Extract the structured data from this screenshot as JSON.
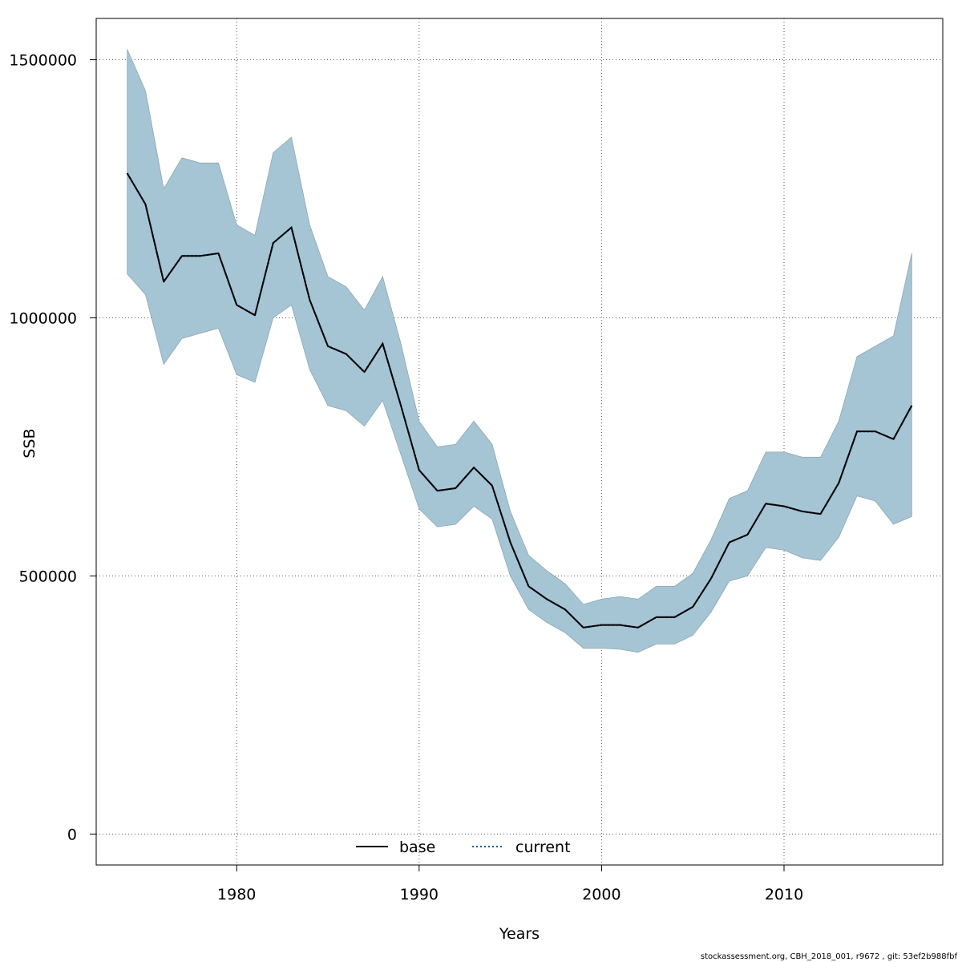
{
  "chart_data": {
    "type": "line",
    "xlabel": "Years",
    "ylabel": "SSB",
    "xlim": [
      1972.3,
      2018.7
    ],
    "ylim": [
      -60000,
      1580000
    ],
    "x_ticks": [
      1980,
      1990,
      2000,
      2010
    ],
    "y_ticks": [
      0,
      500000,
      1000000,
      1500000
    ],
    "y_tick_labels": [
      "0",
      "500000",
      "1000000",
      "1500000"
    ],
    "grid": true,
    "legend_position": "bottom-center",
    "legend": [
      {
        "name": "base",
        "color": "#000000",
        "style": "solid"
      },
      {
        "name": "current",
        "color": "#0b5e8e",
        "style": "dotted"
      }
    ],
    "band_color": "#a5c4d4",
    "x": [
      1974,
      1975,
      1976,
      1977,
      1978,
      1979,
      1980,
      1981,
      1982,
      1983,
      1984,
      1985,
      1986,
      1987,
      1988,
      1989,
      1990,
      1991,
      1992,
      1993,
      1994,
      1995,
      1996,
      1997,
      1998,
      1999,
      2000,
      2001,
      2002,
      2003,
      2004,
      2005,
      2006,
      2007,
      2008,
      2009,
      2010,
      2011,
      2012,
      2013,
      2014,
      2015,
      2016,
      2017
    ],
    "series": [
      {
        "name": "base",
        "values": [
          1280000,
          1220000,
          1070000,
          1120000,
          1120000,
          1125000,
          1025000,
          1005000,
          1145000,
          1175000,
          1035000,
          945000,
          930000,
          895000,
          950000,
          830000,
          705000,
          665000,
          670000,
          710000,
          675000,
          565000,
          480000,
          455000,
          435000,
          400000,
          405000,
          405000,
          400000,
          420000,
          420000,
          440000,
          495000,
          565000,
          580000,
          640000,
          635000,
          625000,
          620000,
          680000,
          780000,
          780000,
          765000,
          830000
        ]
      },
      {
        "name": "current",
        "values": [
          1280000,
          1220000,
          1070000,
          1120000,
          1120000,
          1125000,
          1025000,
          1005000,
          1145000,
          1175000,
          1035000,
          945000,
          930000,
          895000,
          950000,
          830000,
          705000,
          665000,
          670000,
          710000,
          675000,
          565000,
          480000,
          455000,
          435000,
          400000,
          405000,
          405000,
          400000,
          420000,
          420000,
          440000,
          495000,
          565000,
          580000,
          640000,
          635000,
          625000,
          620000,
          680000,
          780000,
          780000,
          765000,
          830000
        ]
      }
    ],
    "band_upper": [
      1520000,
      1440000,
      1250000,
      1310000,
      1300000,
      1300000,
      1180000,
      1160000,
      1320000,
      1350000,
      1180000,
      1080000,
      1060000,
      1015000,
      1080000,
      950000,
      800000,
      750000,
      755000,
      800000,
      755000,
      625000,
      540000,
      510000,
      485000,
      445000,
      455000,
      460000,
      455000,
      480000,
      480000,
      505000,
      570000,
      650000,
      665000,
      740000,
      740000,
      730000,
      730000,
      800000,
      925000,
      945000,
      965000,
      1125000
    ],
    "band_lower": [
      1085000,
      1045000,
      910000,
      960000,
      970000,
      980000,
      890000,
      875000,
      1000000,
      1025000,
      900000,
      830000,
      820000,
      790000,
      840000,
      735000,
      630000,
      595000,
      600000,
      635000,
      610000,
      500000,
      435000,
      410000,
      390000,
      360000,
      360000,
      358000,
      352000,
      368000,
      368000,
      385000,
      430000,
      490000,
      500000,
      555000,
      550000,
      535000,
      530000,
      575000,
      655000,
      645000,
      600000,
      615000
    ]
  },
  "footer_text": "stockassessment.org, CBH_2018_001, r9672 , git: 53ef2b988fbf"
}
